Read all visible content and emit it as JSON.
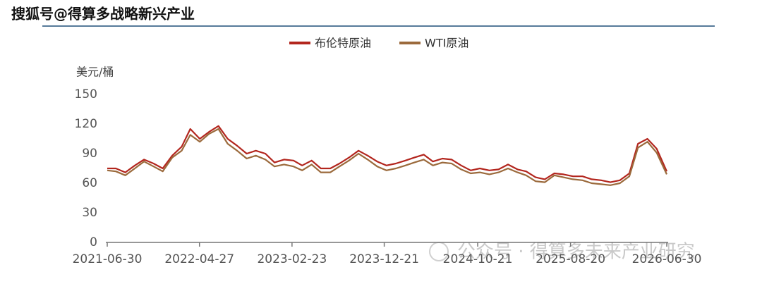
{
  "header": "搜狐号@得算多战略新兴产业",
  "watermark": "公众号 · 得算多未来产业研究",
  "chart_data": {
    "type": "line",
    "y_label": "美元/桶",
    "x": [
      "2021-06-30",
      "2021-07-28",
      "2021-08-28",
      "2021-09-28",
      "2021-10-28",
      "2021-11-28",
      "2021-12-28",
      "2022-01-28",
      "2022-02-28",
      "2022-03-28",
      "2022-04-28",
      "2022-05-28",
      "2022-06-28",
      "2022-07-28",
      "2022-08-28",
      "2022-09-28",
      "2022-10-28",
      "2022-11-28",
      "2022-12-28",
      "2023-01-28",
      "2023-02-28",
      "2023-03-28",
      "2023-04-28",
      "2023-05-28",
      "2023-06-28",
      "2023-07-28",
      "2023-08-28",
      "2023-09-28",
      "2023-10-28",
      "2023-11-28",
      "2023-12-28",
      "2024-01-28",
      "2024-02-28",
      "2024-03-28",
      "2024-04-28",
      "2024-05-28",
      "2024-06-28",
      "2024-07-28",
      "2024-08-28",
      "2024-09-28",
      "2024-10-28",
      "2024-11-28",
      "2024-12-28",
      "2025-01-28",
      "2025-02-28",
      "2025-03-28",
      "2025-04-28",
      "2025-05-28",
      "2025-06-28",
      "2025-07-28",
      "2025-08-28",
      "2025-09-28",
      "2025-10-28",
      "2025-11-28",
      "2025-12-28",
      "2026-01-28",
      "2026-02-28",
      "2026-03-28",
      "2026-04-28",
      "2026-05-28",
      "2026-06-30"
    ],
    "series": [
      {
        "name": "布伦特原油",
        "color": "#b3261e",
        "values": [
          75,
          75,
          71,
          78,
          84,
          80,
          75,
          88,
          97,
          115,
          105,
          112,
          118,
          105,
          98,
          90,
          93,
          90,
          81,
          84,
          83,
          78,
          83,
          75,
          75,
          80,
          86,
          93,
          88,
          82,
          78,
          80,
          83,
          86,
          89,
          82,
          85,
          84,
          78,
          73,
          75,
          73,
          74,
          79,
          74,
          72,
          66,
          64,
          70,
          69,
          67,
          67,
          64,
          63,
          61,
          63,
          70,
          100,
          105,
          95,
          72
        ]
      },
      {
        "name": "WTI原油",
        "color": "#9b6a3c",
        "values": [
          73,
          72,
          68,
          75,
          82,
          77,
          72,
          86,
          93,
          109,
          102,
          110,
          115,
          100,
          93,
          85,
          88,
          84,
          77,
          79,
          77,
          73,
          79,
          71,
          71,
          77,
          83,
          90,
          84,
          77,
          73,
          75,
          78,
          81,
          84,
          78,
          81,
          80,
          74,
          70,
          71,
          69,
          71,
          75,
          71,
          68,
          62,
          61,
          68,
          66,
          64,
          63,
          60,
          59,
          58,
          60,
          67,
          96,
          102,
          91,
          69
        ]
      }
    ],
    "xlim": [
      "2021-06-30",
      "2026-06-30"
    ],
    "xticks": [
      "2021-06-30",
      "2022-04-27",
      "2023-02-23",
      "2023-12-21",
      "2024-10-21",
      "2025-08-20",
      "2026-06-30"
    ],
    "ylim": [
      0,
      150
    ],
    "yticks": [
      0,
      30,
      60,
      90,
      120,
      150
    ],
    "grid": false,
    "legend": "top"
  }
}
